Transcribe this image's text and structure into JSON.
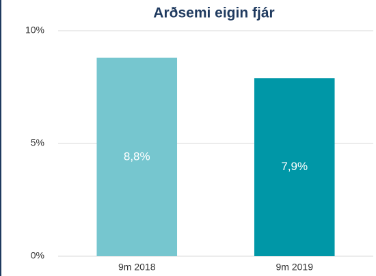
{
  "chart_data": {
    "type": "bar",
    "title": "Arðsemi eigin fjár",
    "categories": [
      "9m 2018",
      "9m 2019"
    ],
    "values": [
      8.8,
      7.9
    ],
    "value_labels": [
      "8,8%",
      "7,9%"
    ],
    "colors": [
      "#76c6cf",
      "#0097a7"
    ],
    "ylim": [
      0,
      10
    ],
    "yticks": [
      {
        "value": 0,
        "label": "0%"
      },
      {
        "value": 5,
        "label": "5%"
      },
      {
        "value": 10,
        "label": "10%"
      }
    ],
    "grid": true
  }
}
